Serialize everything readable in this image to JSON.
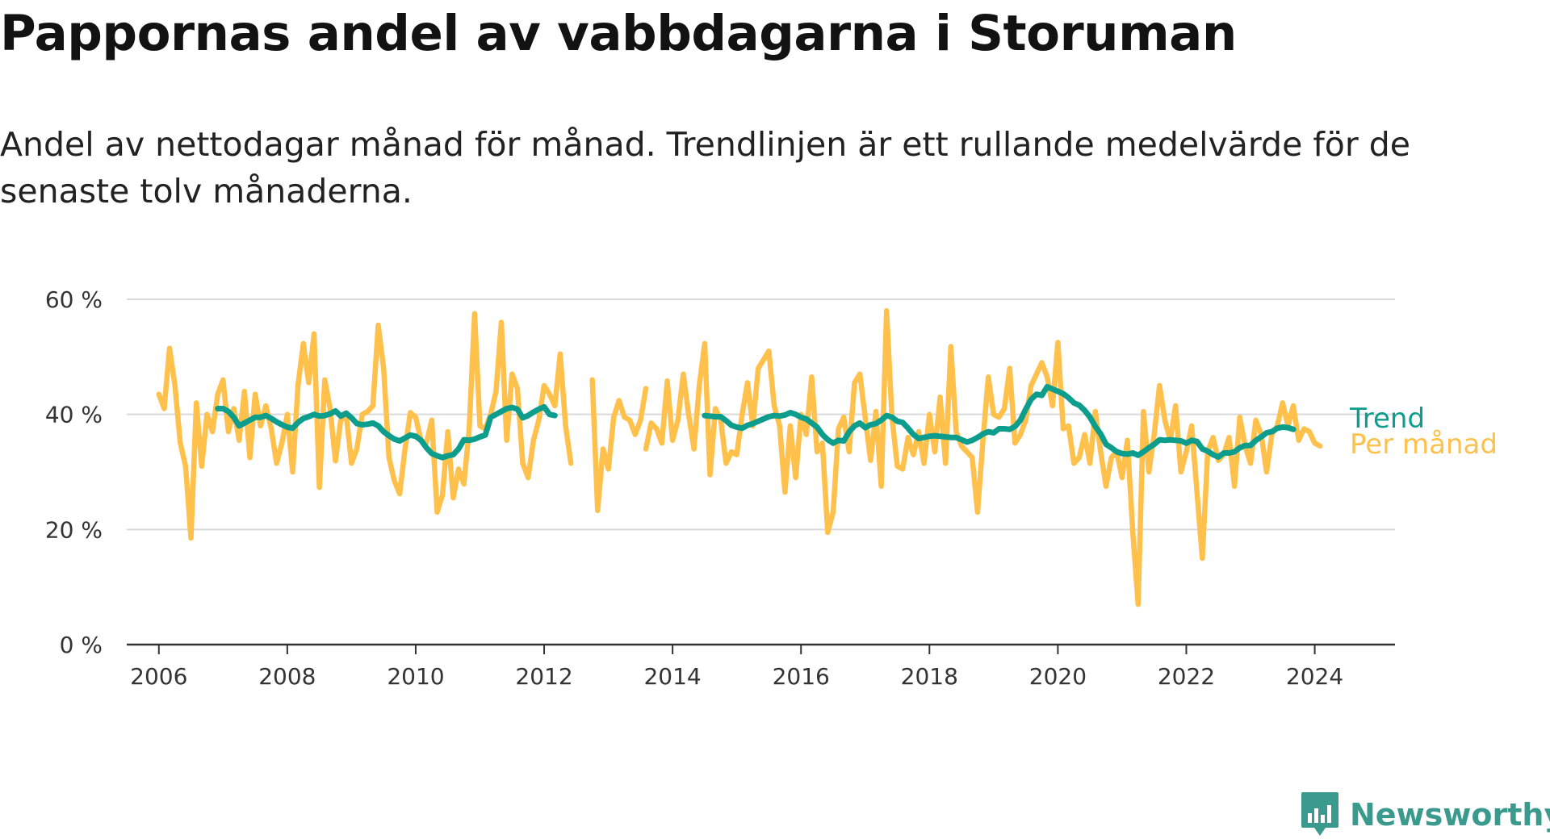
{
  "title": "Pappornas andel av vabbdagarna i Storuman",
  "subtitle": "Andel av nettodagar månad för månad. Trendlinjen är ett rullande medelvärde för de senaste tolv månaderna.",
  "logo_text": "Newsworthy",
  "colors": {
    "monthly": "#FFC04C",
    "trend": "#0C9D8C",
    "grid": "#d9d9d9",
    "axis": "#333333"
  },
  "chart_data": {
    "type": "line",
    "title": "Pappornas andel av vabbdagarna i Storuman",
    "xlabel": "",
    "ylabel": "",
    "ylim": [
      0,
      60
    ],
    "xlim": [
      2005.5,
      2025.25
    ],
    "grid": true,
    "y_ticks": [
      0,
      20,
      40,
      60
    ],
    "y_tick_labels": [
      "0 %",
      "20 %",
      "40 %",
      "60 %"
    ],
    "x_ticks": [
      2006,
      2008,
      2010,
      2012,
      2014,
      2016,
      2018,
      2020,
      2022,
      2024
    ],
    "x_tick_labels": [
      "2006",
      "2008",
      "2010",
      "2012",
      "2014",
      "2016",
      "2018",
      "2020",
      "2022",
      "2024"
    ],
    "series": [
      {
        "name": "Per månad",
        "segments": [
          {
            "start": 2006.0,
            "step": 0.0833333,
            "values": [
              43.5,
              41,
              51.5,
              45,
              35,
              31,
              18.5,
              42,
              31,
              40,
              37,
              43.5,
              46,
              37,
              41,
              35.5,
              44,
              32.5,
              43.5,
              38,
              41.5,
              37.5,
              31.5,
              35,
              40,
              30,
              45,
              52.3,
              45.5,
              54,
              27.3,
              46,
              41,
              31.9,
              39,
              40,
              31.5,
              34,
              40,
              40.5,
              41.5,
              55.5,
              48,
              32.5,
              28.5,
              26.2,
              34,
              40.3,
              39.5,
              35.4,
              35,
              39,
              23,
              26,
              37,
              25.5,
              30.5,
              27.9,
              37.5,
              57.5,
              38,
              37.5,
              40,
              44,
              56,
              35.5,
              47,
              44.5,
              31.5,
              29,
              35.5,
              39,
              45,
              43.5,
              41.5,
              50.5,
              38,
              31.5
            ]
          },
          {
            "start": 2012.75,
            "step": 0.0833333,
            "values": [
              46,
              23.3,
              34,
              30.5,
              39.5,
              42.4,
              39.5,
              39,
              36.5,
              39,
              44.5
            ]
          },
          {
            "start": 2013.583,
            "step": 0.0833333,
            "values": [
              34,
              38.5,
              37.5,
              35,
              45.8,
              35.5,
              39,
              47,
              40,
              34,
              45,
              52.3,
              29.5,
              41,
              39,
              31.5,
              33.5,
              33,
              40,
              45.5,
              38,
              48,
              49.5,
              51,
              41.5,
              38,
              26.5,
              38,
              29,
              40,
              36.5,
              46.5,
              33.5,
              35,
              19.5,
              23,
              37.5,
              39.5,
              33.5,
              45.5,
              47,
              39.5,
              32,
              40.5,
              27.5,
              58,
              39.5,
              31,
              30.5,
              36,
              33,
              37,
              31.5,
              40,
              33.5,
              43,
              31.5,
              51.8,
              37,
              34.5,
              33.5,
              32.5,
              23,
              35.5,
              46.5,
              40,
              39.5,
              41,
              48,
              35,
              36.5,
              39,
              45,
              47,
              49,
              46.5,
              41.5,
              52.5,
              37.5,
              38,
              31.5,
              32.5,
              36.5,
              31.5,
              40.5,
              33.5,
              27.5,
              32.5,
              33.5,
              29,
              35.5,
              19.5,
              7,
              40.5,
              30,
              36.5,
              45,
              39,
              35.5,
              41.5,
              30,
              33.5,
              38,
              26.5,
              15,
              33.5,
              36,
              32,
              33,
              36,
              27.5,
              39.5,
              34.5,
              31.5,
              39,
              36.5,
              30,
              36.5,
              38,
              42,
              38,
              41.5,
              35.5,
              37.5,
              37,
              35,
              34.5
            ]
          }
        ]
      },
      {
        "name": "Trend",
        "segments": [
          {
            "start": 2006.917,
            "step": 0.0833333,
            "values": [
              41,
              41,
              40.5,
              39.5,
              38,
              38.5,
              39,
              39.5,
              39.5,
              39.8,
              39.3,
              38.7,
              38.2,
              37.8,
              37.6,
              38.6,
              39.3,
              39.6,
              40,
              39.7,
              39.8,
              40.1,
              40.6,
              39.7,
              40.2,
              39.4,
              38.4,
              38.2,
              38.3,
              38.5,
              38,
              37,
              36.3,
              35.7,
              35.4,
              35.9,
              36.4,
              36.2,
              35.5,
              34.2,
              33.2,
              32.8,
              32.5,
              32.8,
              33,
              34,
              35.6,
              35.5,
              35.7,
              36.1,
              36.4,
              39.5,
              40,
              40.5,
              41,
              41.2,
              40.9,
              39.4,
              39.8,
              40.4,
              40.9,
              41.3,
              40,
              39.8
            ]
          },
          {
            "start": 2014.5,
            "step": 0.0833333,
            "values": [
              39.8,
              39.7,
              39.6,
              39.6,
              38.9,
              38.1,
              37.8,
              37.6,
              38.1,
              38.4,
              38.8,
              39.2,
              39.6,
              39.8,
              39.7,
              39.9,
              40.3,
              40,
              39.5,
              39.2,
              38.5,
              37.8,
              36.5,
              35.6,
              35,
              35.5,
              35.4,
              37,
              38,
              38.5,
              37.7,
              38.2,
              38.4,
              39,
              39.8,
              39.5,
              38.8,
              38.6,
              37.6,
              36.5,
              35.8,
              36,
              36.2,
              36.3,
              36.2,
              36.1,
              36,
              36,
              35.6,
              35.2,
              35.5,
              36,
              36.6,
              37,
              36.8,
              37.5,
              37.5,
              37.4,
              37.9,
              39,
              40.9,
              42.6,
              43.5,
              43.3,
              44.8,
              44.4,
              44,
              43.6,
              42.9,
              42,
              41.6,
              40.7,
              39.5,
              37.9,
              36.6,
              34.8,
              34.2,
              33.5,
              33.2,
              33.1,
              33.3,
              32.9,
              33.5,
              34.2,
              34.8,
              35.6,
              35.5,
              35.6,
              35.5,
              35.4,
              35,
              35.5,
              35.3,
              34,
              33.6,
              33,
              32.6,
              33.3,
              33.3,
              33.5,
              34.2,
              34.6,
              34.6,
              35.5,
              36.1,
              36.8,
              37,
              37.6,
              37.8,
              37.7,
              37.4
            ]
          }
        ]
      }
    ]
  }
}
